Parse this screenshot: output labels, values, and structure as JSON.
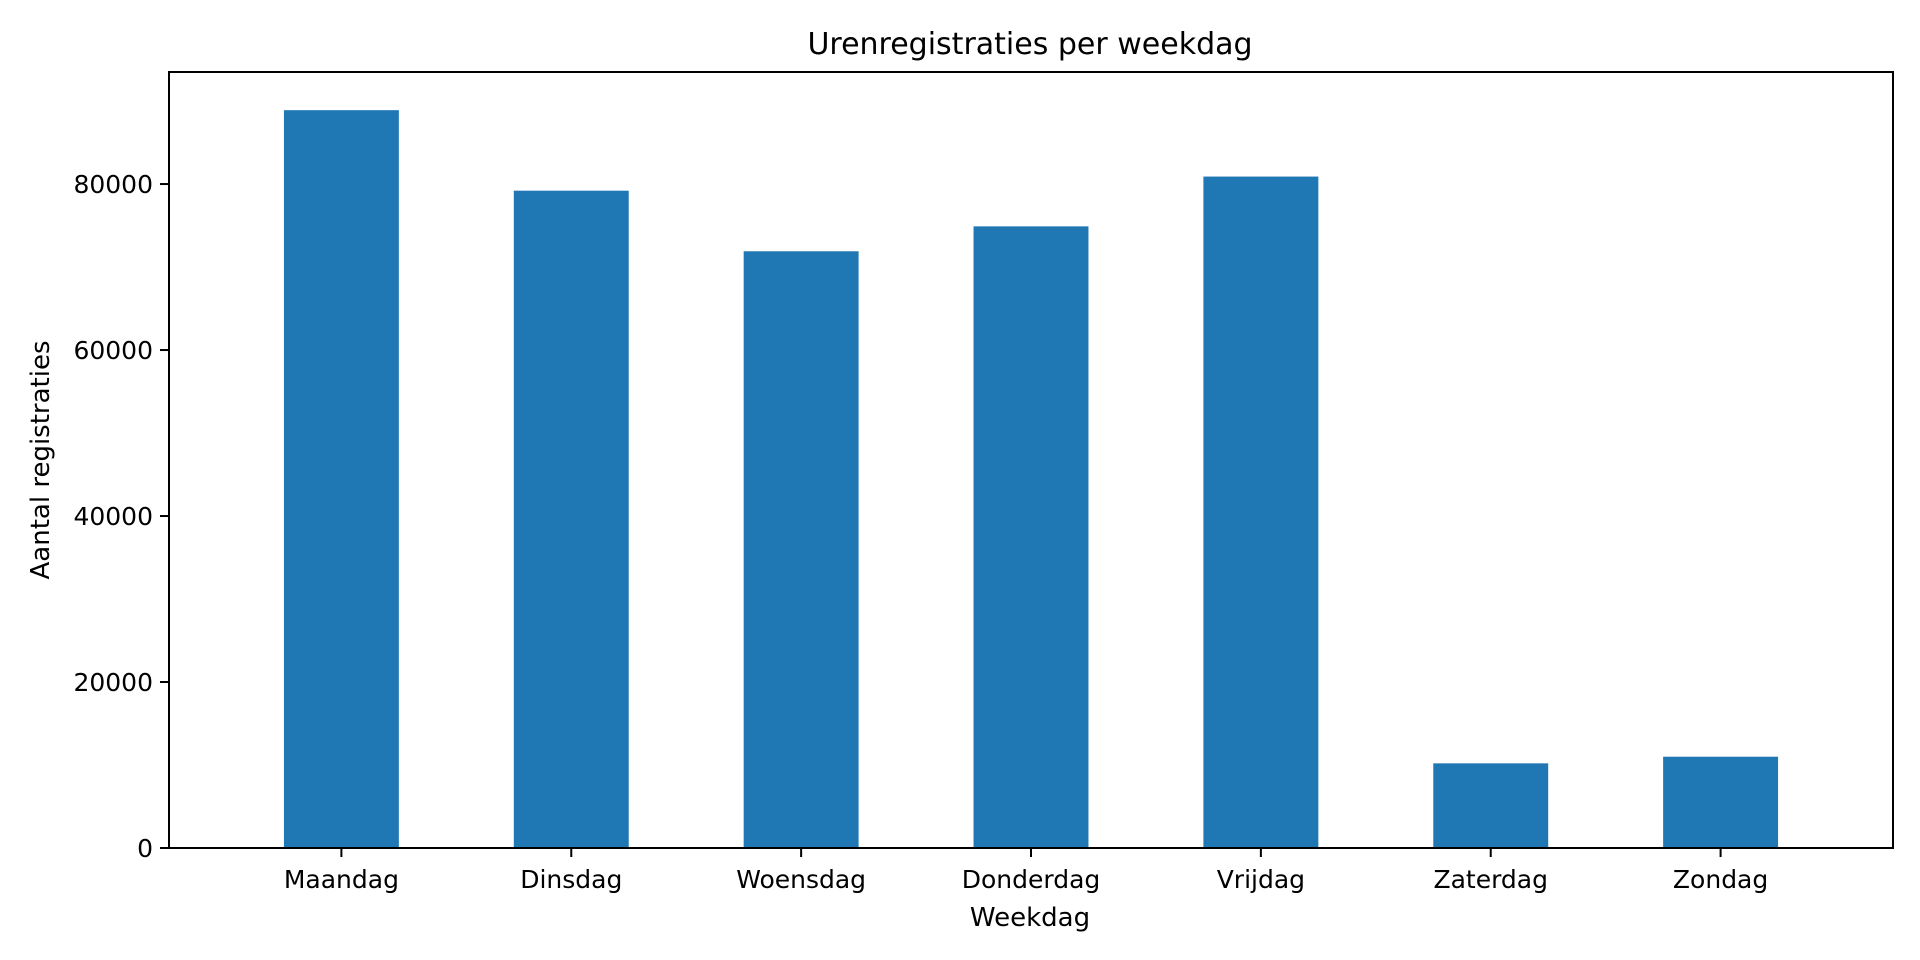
{
  "chart_data": {
    "type": "bar",
    "title": "Urenregistraties per weekdag",
    "xlabel": "Weekdag",
    "ylabel": "Aantal registraties",
    "categories": [
      "Maandag",
      "Dinsdag",
      "Woensdag",
      "Donderdag",
      "Vrijdag",
      "Zaterdag",
      "Zondag"
    ],
    "values": [
      88900,
      79200,
      71900,
      74900,
      80900,
      10200,
      11000
    ],
    "ylim": [
      0,
      93500
    ],
    "yticks": [
      0,
      20000,
      40000,
      60000,
      80000
    ],
    "grid": false,
    "bar_color": "#1f77b4"
  }
}
